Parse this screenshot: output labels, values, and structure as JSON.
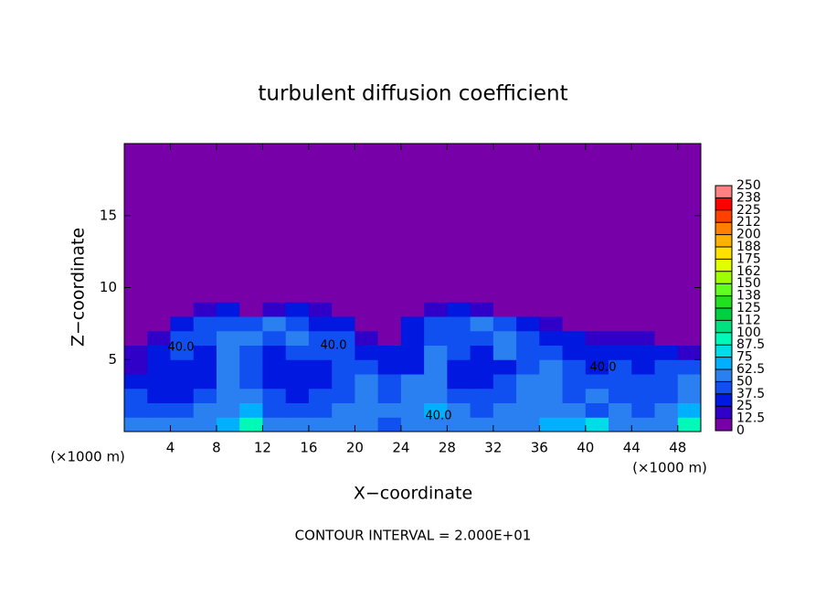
{
  "chart_data": {
    "type": "heatmap",
    "title": "turbulent diffusion coefficient",
    "x_label": "X−coordinate",
    "y_label": "Z−coordinate",
    "x_unit_label": "(×1000 m)",
    "y_unit_label": "(×1000 m)",
    "footer": "CONTOUR INTERVAL = 2.000E+01",
    "contour_labels": [
      "40.0",
      "40.0",
      "40.0",
      "40.0"
    ],
    "xlim": [
      0,
      50
    ],
    "ylim": [
      0,
      20
    ],
    "xticks": [
      4,
      8,
      12,
      16,
      20,
      24,
      28,
      32,
      36,
      40,
      44,
      48
    ],
    "yticks": [
      5,
      10,
      15
    ],
    "xbins": [
      0,
      2,
      4,
      6,
      8,
      10,
      12,
      14,
      16,
      18,
      20,
      22,
      24,
      26,
      28,
      30,
      32,
      34,
      36,
      38,
      40,
      42,
      44,
      46,
      48,
      50
    ],
    "ybins": [
      0,
      1,
      2,
      3,
      4,
      5,
      6,
      7,
      8,
      9,
      20
    ],
    "values": [
      [
        60,
        55,
        50,
        55,
        70,
        90,
        55,
        50,
        55,
        60,
        50,
        45,
        50,
        60,
        55,
        50,
        55,
        60,
        65,
        70,
        80,
        60,
        55,
        60,
        90
      ],
      [
        45,
        40,
        45,
        50,
        60,
        70,
        45,
        40,
        45,
        50,
        55,
        50,
        60,
        70,
        50,
        45,
        55,
        60,
        55,
        50,
        45,
        55,
        45,
        50,
        70
      ],
      [
        40,
        35,
        35,
        40,
        55,
        50,
        40,
        35,
        40,
        45,
        55,
        45,
        55,
        60,
        40,
        40,
        45,
        60,
        55,
        45,
        50,
        40,
        45,
        45,
        60
      ],
      [
        35,
        30,
        30,
        35,
        50,
        45,
        35,
        30,
        35,
        40,
        50,
        40,
        50,
        55,
        35,
        35,
        40,
        55,
        50,
        40,
        40,
        40,
        40,
        45,
        50
      ],
      [
        20,
        30,
        35,
        30,
        50,
        40,
        30,
        30,
        35,
        45,
        40,
        30,
        35,
        50,
        35,
        30,
        35,
        45,
        50,
        40,
        35,
        40,
        35,
        40,
        40
      ],
      [
        15,
        35,
        40,
        35,
        55,
        45,
        35,
        40,
        40,
        45,
        30,
        25,
        30,
        50,
        40,
        35,
        50,
        45,
        40,
        35,
        30,
        35,
        30,
        25,
        20
      ],
      [
        5,
        20,
        45,
        40,
        50,
        55,
        45,
        50,
        40,
        40,
        20,
        10,
        35,
        45,
        40,
        45,
        55,
        40,
        35,
        30,
        20,
        20,
        15,
        10,
        5
      ],
      [
        5,
        5,
        35,
        45,
        45,
        40,
        50,
        45,
        35,
        25,
        10,
        5,
        25,
        40,
        45,
        50,
        40,
        30,
        20,
        10,
        5,
        10,
        5,
        5,
        5
      ],
      [
        5,
        5,
        5,
        20,
        25,
        5,
        20,
        25,
        20,
        10,
        5,
        5,
        5,
        20,
        30,
        20,
        10,
        5,
        5,
        5,
        5,
        5,
        5,
        5,
        5
      ],
      [
        5,
        5,
        5,
        5,
        5,
        5,
        5,
        5,
        5,
        5,
        5,
        5,
        5,
        5,
        5,
        5,
        5,
        5,
        5,
        5,
        5,
        5,
        5,
        5,
        5
      ]
    ],
    "colorbar": {
      "ticks": [
        0,
        12.5,
        25,
        37.5,
        50,
        62.5,
        75,
        87.5,
        100,
        {
          "value": 112.5,
          "label": "112"
        },
        125,
        {
          "value": 137.5,
          "label": "138"
        },
        150,
        {
          "value": 162.5,
          "label": "162"
        },
        175,
        {
          "value": 187.5,
          "label": "188"
        },
        200,
        {
          "value": 212.5,
          "label": "212"
        },
        225,
        {
          "value": 237.5,
          "label": "238"
        },
        250
      ],
      "colors": [
        "#7800a8",
        "#3000c8",
        "#0018e0",
        "#1050f0",
        "#2a80f0",
        "#00b0ff",
        "#00dce8",
        "#00f8b8",
        "#00e080",
        "#00d040",
        "#20e020",
        "#60ff20",
        "#a0ff00",
        "#e0ff00",
        "#ffe000",
        "#ffb000",
        "#ff8000",
        "#ff4000",
        "#ff0000",
        "#ff8080"
      ]
    }
  }
}
